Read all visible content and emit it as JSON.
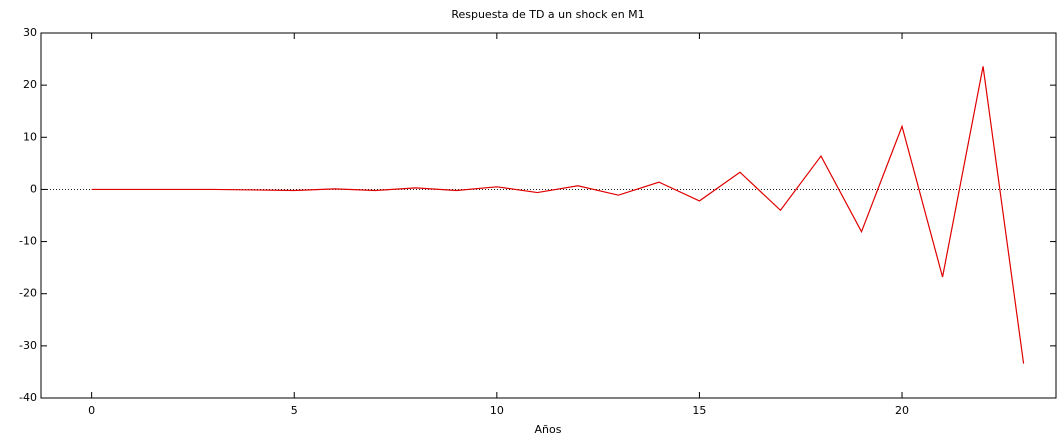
{
  "chart_data": {
    "type": "line",
    "title": "Respuesta de TD a un shock en M1",
    "xlabel": "Años",
    "x": [
      0,
      1,
      2,
      3,
      4,
      5,
      6,
      7,
      8,
      9,
      10,
      11,
      12,
      13,
      14,
      15,
      16,
      17,
      18,
      19,
      20,
      21,
      22,
      23
    ],
    "values": [
      0,
      0,
      0,
      0,
      -0.1,
      -0.2,
      0.1,
      -0.2,
      0.3,
      -0.2,
      0.5,
      -0.6,
      0.7,
      -1.1,
      1.4,
      -2.2,
      3.3,
      -4.0,
      6.4,
      -8.1,
      12.1,
      -16.8,
      23.6,
      -33.4
    ],
    "color": "#e00000",
    "xlim": [
      -1.25,
      23.8
    ],
    "xticks": [
      0,
      5,
      10,
      15,
      20
    ],
    "ylim": [
      -40,
      30
    ],
    "yticks": [
      -40,
      -30,
      -20,
      -10,
      0,
      10,
      20,
      30
    ],
    "zero_line": true
  }
}
